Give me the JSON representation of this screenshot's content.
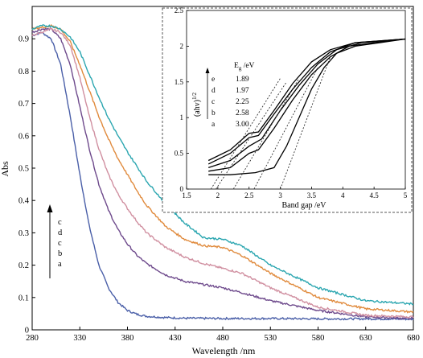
{
  "chart_data": [
    {
      "type": "line",
      "xlabel": "Wavelength /nm",
      "ylabel": "Abs",
      "xlim": [
        280,
        680
      ],
      "ylim": [
        0,
        1.0
      ],
      "xticks": [
        "280",
        "330",
        "380",
        "430",
        "480",
        "530",
        "580",
        "630",
        "680"
      ],
      "yticks": [
        "0",
        "0.1",
        "0.2",
        "0.3",
        "0.4",
        "0.5",
        "0.6",
        "0.7",
        "0.8",
        "0.9"
      ],
      "grid": false,
      "arrow_labels": [
        "c",
        "d",
        "c",
        "b",
        "a"
      ],
      "series": [
        {
          "id": "a",
          "color": "#4a5fa8",
          "points": [
            [
              280,
              0.91
            ],
            [
              290,
              0.92
            ],
            [
              300,
              0.9
            ],
            [
              310,
              0.82
            ],
            [
              320,
              0.66
            ],
            [
              330,
              0.48
            ],
            [
              340,
              0.32
            ],
            [
              350,
              0.2
            ],
            [
              360,
              0.13
            ],
            [
              370,
              0.085
            ],
            [
              380,
              0.06
            ],
            [
              390,
              0.048
            ],
            [
              400,
              0.042
            ],
            [
              420,
              0.038
            ],
            [
              440,
              0.036
            ],
            [
              480,
              0.035
            ],
            [
              530,
              0.035
            ],
            [
              580,
              0.034
            ],
            [
              630,
              0.034
            ],
            [
              680,
              0.033
            ]
          ]
        },
        {
          "id": "b",
          "color": "#6e4a8c",
          "points": [
            [
              280,
              0.92
            ],
            [
              290,
              0.93
            ],
            [
              300,
              0.93
            ],
            [
              310,
              0.9
            ],
            [
              320,
              0.82
            ],
            [
              330,
              0.69
            ],
            [
              340,
              0.56
            ],
            [
              350,
              0.45
            ],
            [
              360,
              0.37
            ],
            [
              370,
              0.31
            ],
            [
              380,
              0.265
            ],
            [
              390,
              0.23
            ],
            [
              400,
              0.205
            ],
            [
              420,
              0.17
            ],
            [
              440,
              0.15
            ],
            [
              460,
              0.14
            ],
            [
              480,
              0.13
            ],
            [
              500,
              0.115
            ],
            [
              530,
              0.09
            ],
            [
              580,
              0.06
            ],
            [
              630,
              0.04
            ],
            [
              680,
              0.035
            ]
          ]
        },
        {
          "id": "c",
          "color": "#d08fa0",
          "points": [
            [
              280,
              0.91
            ],
            [
              290,
              0.92
            ],
            [
              300,
              0.93
            ],
            [
              310,
              0.92
            ],
            [
              320,
              0.88
            ],
            [
              330,
              0.78
            ],
            [
              340,
              0.66
            ],
            [
              350,
              0.56
            ],
            [
              360,
              0.48
            ],
            [
              370,
              0.42
            ],
            [
              380,
              0.375
            ],
            [
              390,
              0.335
            ],
            [
              400,
              0.3
            ],
            [
              420,
              0.255
            ],
            [
              440,
              0.225
            ],
            [
              460,
              0.205
            ],
            [
              480,
              0.19
            ],
            [
              500,
              0.175
            ],
            [
              530,
              0.13
            ],
            [
              580,
              0.07
            ],
            [
              630,
              0.045
            ],
            [
              680,
              0.04
            ]
          ]
        },
        {
          "id": "d",
          "color": "#e08a3c",
          "points": [
            [
              280,
              0.93
            ],
            [
              290,
              0.935
            ],
            [
              300,
              0.94
            ],
            [
              310,
              0.93
            ],
            [
              320,
              0.89
            ],
            [
              330,
              0.82
            ],
            [
              340,
              0.74
            ],
            [
              350,
              0.66
            ],
            [
              360,
              0.59
            ],
            [
              370,
              0.53
            ],
            [
              380,
              0.48
            ],
            [
              390,
              0.43
            ],
            [
              400,
              0.385
            ],
            [
              420,
              0.32
            ],
            [
              440,
              0.28
            ],
            [
              460,
              0.26
            ],
            [
              480,
              0.255
            ],
            [
              500,
              0.23
            ],
            [
              530,
              0.175
            ],
            [
              580,
              0.1
            ],
            [
              630,
              0.065
            ],
            [
              680,
              0.055
            ]
          ]
        },
        {
          "id": "e",
          "color": "#2ba6b0",
          "points": [
            [
              280,
              0.93
            ],
            [
              290,
              0.94
            ],
            [
              300,
              0.94
            ],
            [
              310,
              0.93
            ],
            [
              320,
              0.905
            ],
            [
              330,
              0.86
            ],
            [
              340,
              0.79
            ],
            [
              350,
              0.72
            ],
            [
              360,
              0.655
            ],
            [
              370,
              0.6
            ],
            [
              380,
              0.55
            ],
            [
              390,
              0.505
            ],
            [
              400,
              0.46
            ],
            [
              420,
              0.39
            ],
            [
              440,
              0.33
            ],
            [
              460,
              0.285
            ],
            [
              480,
              0.28
            ],
            [
              500,
              0.26
            ],
            [
              530,
              0.2
            ],
            [
              580,
              0.13
            ],
            [
              630,
              0.09
            ],
            [
              680,
              0.08
            ]
          ]
        }
      ]
    },
    {
      "type": "line",
      "xlabel": "Band gap /eV",
      "ylabel": "(ahv)^1/2",
      "xlim": [
        1.5,
        5
      ],
      "ylim": [
        0,
        2.5
      ],
      "xticks": [
        "1.5",
        "2",
        "2.5",
        "3",
        "3.5",
        "4",
        "4.5",
        "5"
      ],
      "yticks": [
        "0",
        "0.5",
        "1",
        "1.5",
        "2",
        "2.5"
      ],
      "grid": false,
      "table_header": "Eg /eV",
      "table": [
        {
          "label": "e",
          "value": "1.89"
        },
        {
          "label": "d",
          "value": "1.97"
        },
        {
          "label": "c",
          "value": "2.25"
        },
        {
          "label": "b",
          "value": "2.58"
        },
        {
          "label": "a",
          "value": "3.00"
        }
      ],
      "series": [
        {
          "id": "a",
          "color": "#000000",
          "points": [
            [
              1.85,
              0.2
            ],
            [
              2.2,
              0.2
            ],
            [
              2.6,
              0.23
            ],
            [
              2.9,
              0.3
            ],
            [
              3.1,
              0.6
            ],
            [
              3.3,
              1.0
            ],
            [
              3.5,
              1.4
            ],
            [
              3.7,
              1.7
            ],
            [
              3.9,
              1.9
            ],
            [
              4.2,
              2.0
            ],
            [
              4.6,
              2.05
            ],
            [
              5.0,
              2.1
            ]
          ],
          "tangent": [
            [
              3.0,
              0.0
            ],
            [
              3.8,
              1.85
            ]
          ]
        },
        {
          "id": "b",
          "color": "#000000",
          "points": [
            [
              1.85,
              0.25
            ],
            [
              2.2,
              0.3
            ],
            [
              2.5,
              0.5
            ],
            [
              2.65,
              0.55
            ],
            [
              2.9,
              0.85
            ],
            [
              3.2,
              1.25
            ],
            [
              3.5,
              1.6
            ],
            [
              3.8,
              1.85
            ],
            [
              4.1,
              2.0
            ],
            [
              4.5,
              2.05
            ],
            [
              5.0,
              2.1
            ]
          ],
          "tangent": [
            [
              2.58,
              0.0
            ],
            [
              3.6,
              1.7
            ]
          ]
        },
        {
          "id": "c",
          "color": "#000000",
          "points": [
            [
              1.85,
              0.3
            ],
            [
              2.2,
              0.4
            ],
            [
              2.5,
              0.6
            ],
            [
              2.7,
              0.7
            ],
            [
              3.0,
              1.1
            ],
            [
              3.3,
              1.45
            ],
            [
              3.6,
              1.75
            ],
            [
              3.9,
              1.95
            ],
            [
              4.3,
              2.05
            ],
            [
              5.0,
              2.1
            ]
          ],
          "tangent": [
            [
              2.25,
              0.0
            ],
            [
              3.3,
              1.55
            ]
          ]
        },
        {
          "id": "d",
          "color": "#000000",
          "points": [
            [
              1.85,
              0.35
            ],
            [
              2.2,
              0.5
            ],
            [
              2.5,
              0.72
            ],
            [
              2.65,
              0.75
            ],
            [
              2.9,
              1.05
            ],
            [
              3.2,
              1.4
            ],
            [
              3.5,
              1.7
            ],
            [
              3.8,
              1.92
            ],
            [
              4.2,
              2.05
            ],
            [
              5.0,
              2.1
            ]
          ],
          "tangent": [
            [
              1.97,
              0.0
            ],
            [
              3.1,
              1.5
            ]
          ]
        },
        {
          "id": "e",
          "color": "#000000",
          "points": [
            [
              1.85,
              0.4
            ],
            [
              2.2,
              0.55
            ],
            [
              2.5,
              0.78
            ],
            [
              2.65,
              0.8
            ],
            [
              2.9,
              1.1
            ],
            [
              3.2,
              1.48
            ],
            [
              3.5,
              1.78
            ],
            [
              3.8,
              1.95
            ],
            [
              4.2,
              2.05
            ],
            [
              5.0,
              2.1
            ]
          ],
          "tangent": [
            [
              1.89,
              0.0
            ],
            [
              3.0,
              1.55
            ]
          ]
        }
      ]
    }
  ]
}
